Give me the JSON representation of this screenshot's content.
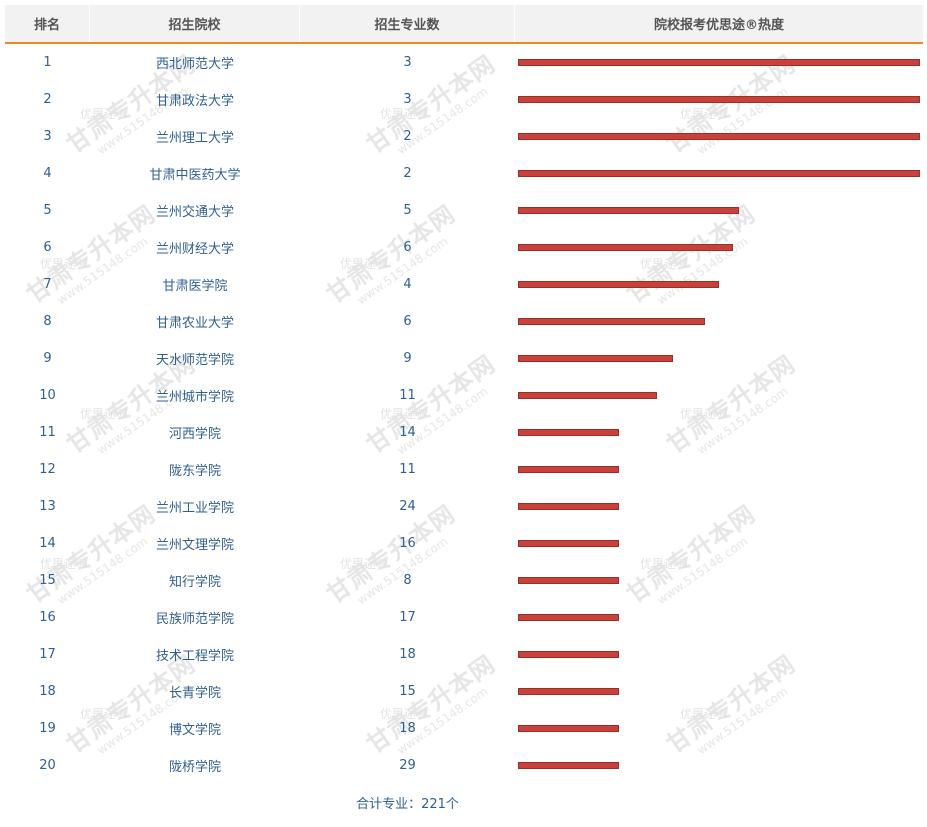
{
  "header": {
    "rank": "排名",
    "school": "招生院校",
    "majors": "招生专业数",
    "heat": "院校报考优思途®热度"
  },
  "watermark": {
    "main": "甘肃专升本网",
    "url": "www.515148.com",
    "brand": "优思途®"
  },
  "colors": {
    "header_bg": "#f2f2f2",
    "header_rule": "#f08a20",
    "bar": "#c8423b",
    "link_text": "#2f5f8f"
  },
  "chart_data": {
    "type": "bar",
    "orientation": "horizontal",
    "xlim": [
      0,
      100
    ],
    "rows": [
      {
        "rank": "1",
        "school": "西北师范大学",
        "majors": "3",
        "heat": 100
      },
      {
        "rank": "2",
        "school": "甘肃政法大学",
        "majors": "3",
        "heat": 100
      },
      {
        "rank": "3",
        "school": "兰州理工大学",
        "majors": "2",
        "heat": 100
      },
      {
        "rank": "4",
        "school": "甘肃中医药大学",
        "majors": "2",
        "heat": 100
      },
      {
        "rank": "5",
        "school": "兰州交通大学",
        "majors": "5",
        "heat": 55
      },
      {
        "rank": "6",
        "school": "兰州财经大学",
        "majors": "6",
        "heat": 53.5
      },
      {
        "rank": "7",
        "school": "甘肃医学院",
        "majors": "4",
        "heat": 50
      },
      {
        "rank": "8",
        "school": "甘肃农业大学",
        "majors": "6",
        "heat": 46.5
      },
      {
        "rank": "9",
        "school": "天水师范学院",
        "majors": "9",
        "heat": 38.5
      },
      {
        "rank": "10",
        "school": "兰州城市学院",
        "majors": "11",
        "heat": 34.5
      },
      {
        "rank": "11",
        "school": "河西学院",
        "majors": "14",
        "heat": 25
      },
      {
        "rank": "12",
        "school": "陇东学院",
        "majors": "11",
        "heat": 25
      },
      {
        "rank": "13",
        "school": "兰州工业学院",
        "majors": "24",
        "heat": 25
      },
      {
        "rank": "14",
        "school": "兰州文理学院",
        "majors": "16",
        "heat": 25
      },
      {
        "rank": "15",
        "school": "知行学院",
        "majors": "8",
        "heat": 25
      },
      {
        "rank": "16",
        "school": "民族师范学院",
        "majors": "17",
        "heat": 25
      },
      {
        "rank": "17",
        "school": "技术工程学院",
        "majors": "18",
        "heat": 25
      },
      {
        "rank": "18",
        "school": "长青学院",
        "majors": "15",
        "heat": 25
      },
      {
        "rank": "19",
        "school": "博文学院",
        "majors": "18",
        "heat": 25
      },
      {
        "rank": "20",
        "school": "陇桥学院",
        "majors": "29",
        "heat": 25
      }
    ]
  },
  "footer": {
    "total": "合计专业：221个"
  }
}
